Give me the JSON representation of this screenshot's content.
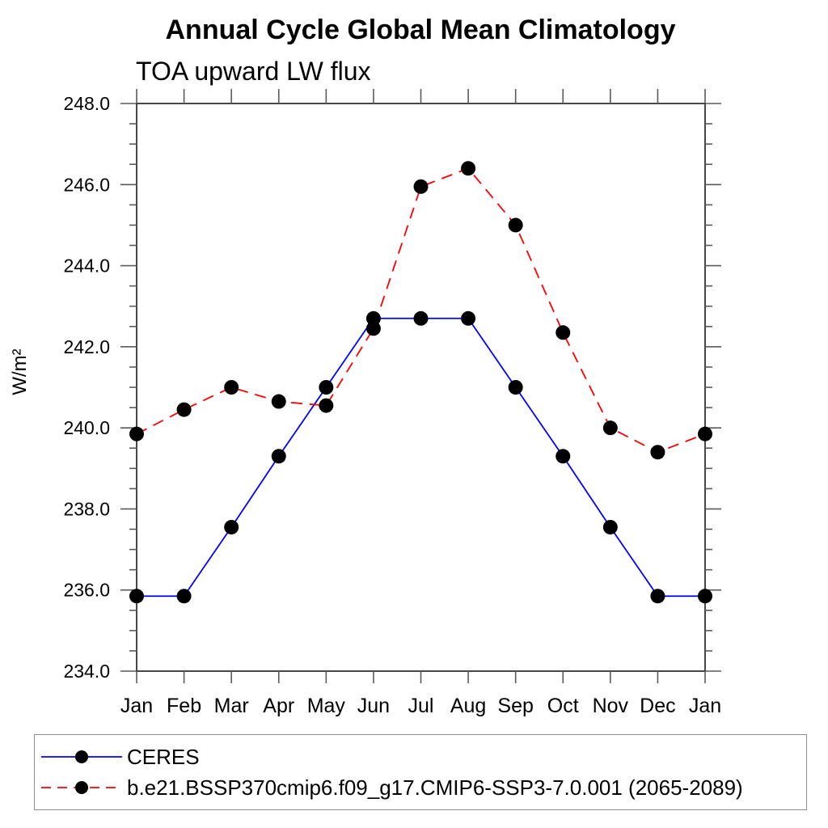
{
  "chart_data": {
    "type": "line",
    "title": "Annual Cycle Global Mean Climatology",
    "subtitle": "TOA upward LW flux",
    "ylabel": "W/m²",
    "xlabel": "",
    "x_categories": [
      "Jan",
      "Feb",
      "Mar",
      "Apr",
      "May",
      "Jun",
      "Jul",
      "Aug",
      "Sep",
      "Oct",
      "Nov",
      "Dec",
      "Jan"
    ],
    "ylim": [
      234.0,
      248.0
    ],
    "ytick_step": 2.0,
    "ytick_minor_step": 0.5,
    "ytick_labels": [
      "234.0",
      "236.0",
      "238.0",
      "240.0",
      "242.0",
      "244.0",
      "246.0",
      "248.0"
    ],
    "grid": "off",
    "legend_position": "bottom-left-box",
    "series": [
      {
        "name": "CERES",
        "color": "#0000ff",
        "line_style": "solid",
        "marker": "circle",
        "marker_color": "#000000",
        "values": [
          235.85,
          235.85,
          237.55,
          239.3,
          241.0,
          242.7,
          242.7,
          242.7,
          241.0,
          239.3,
          237.55,
          235.85,
          235.85
        ]
      },
      {
        "name": "b.e21.BSSP370cmip6.f09_g17.CMIP6-SSP3-7.0.001 (2065-2089)",
        "color": "#ff0000",
        "line_style": "dashed",
        "marker": "circle",
        "marker_color": "#000000",
        "values": [
          239.85,
          240.45,
          241.0,
          240.65,
          240.55,
          242.45,
          245.95,
          246.4,
          245.0,
          242.35,
          240.0,
          239.4,
          239.85
        ]
      }
    ]
  }
}
